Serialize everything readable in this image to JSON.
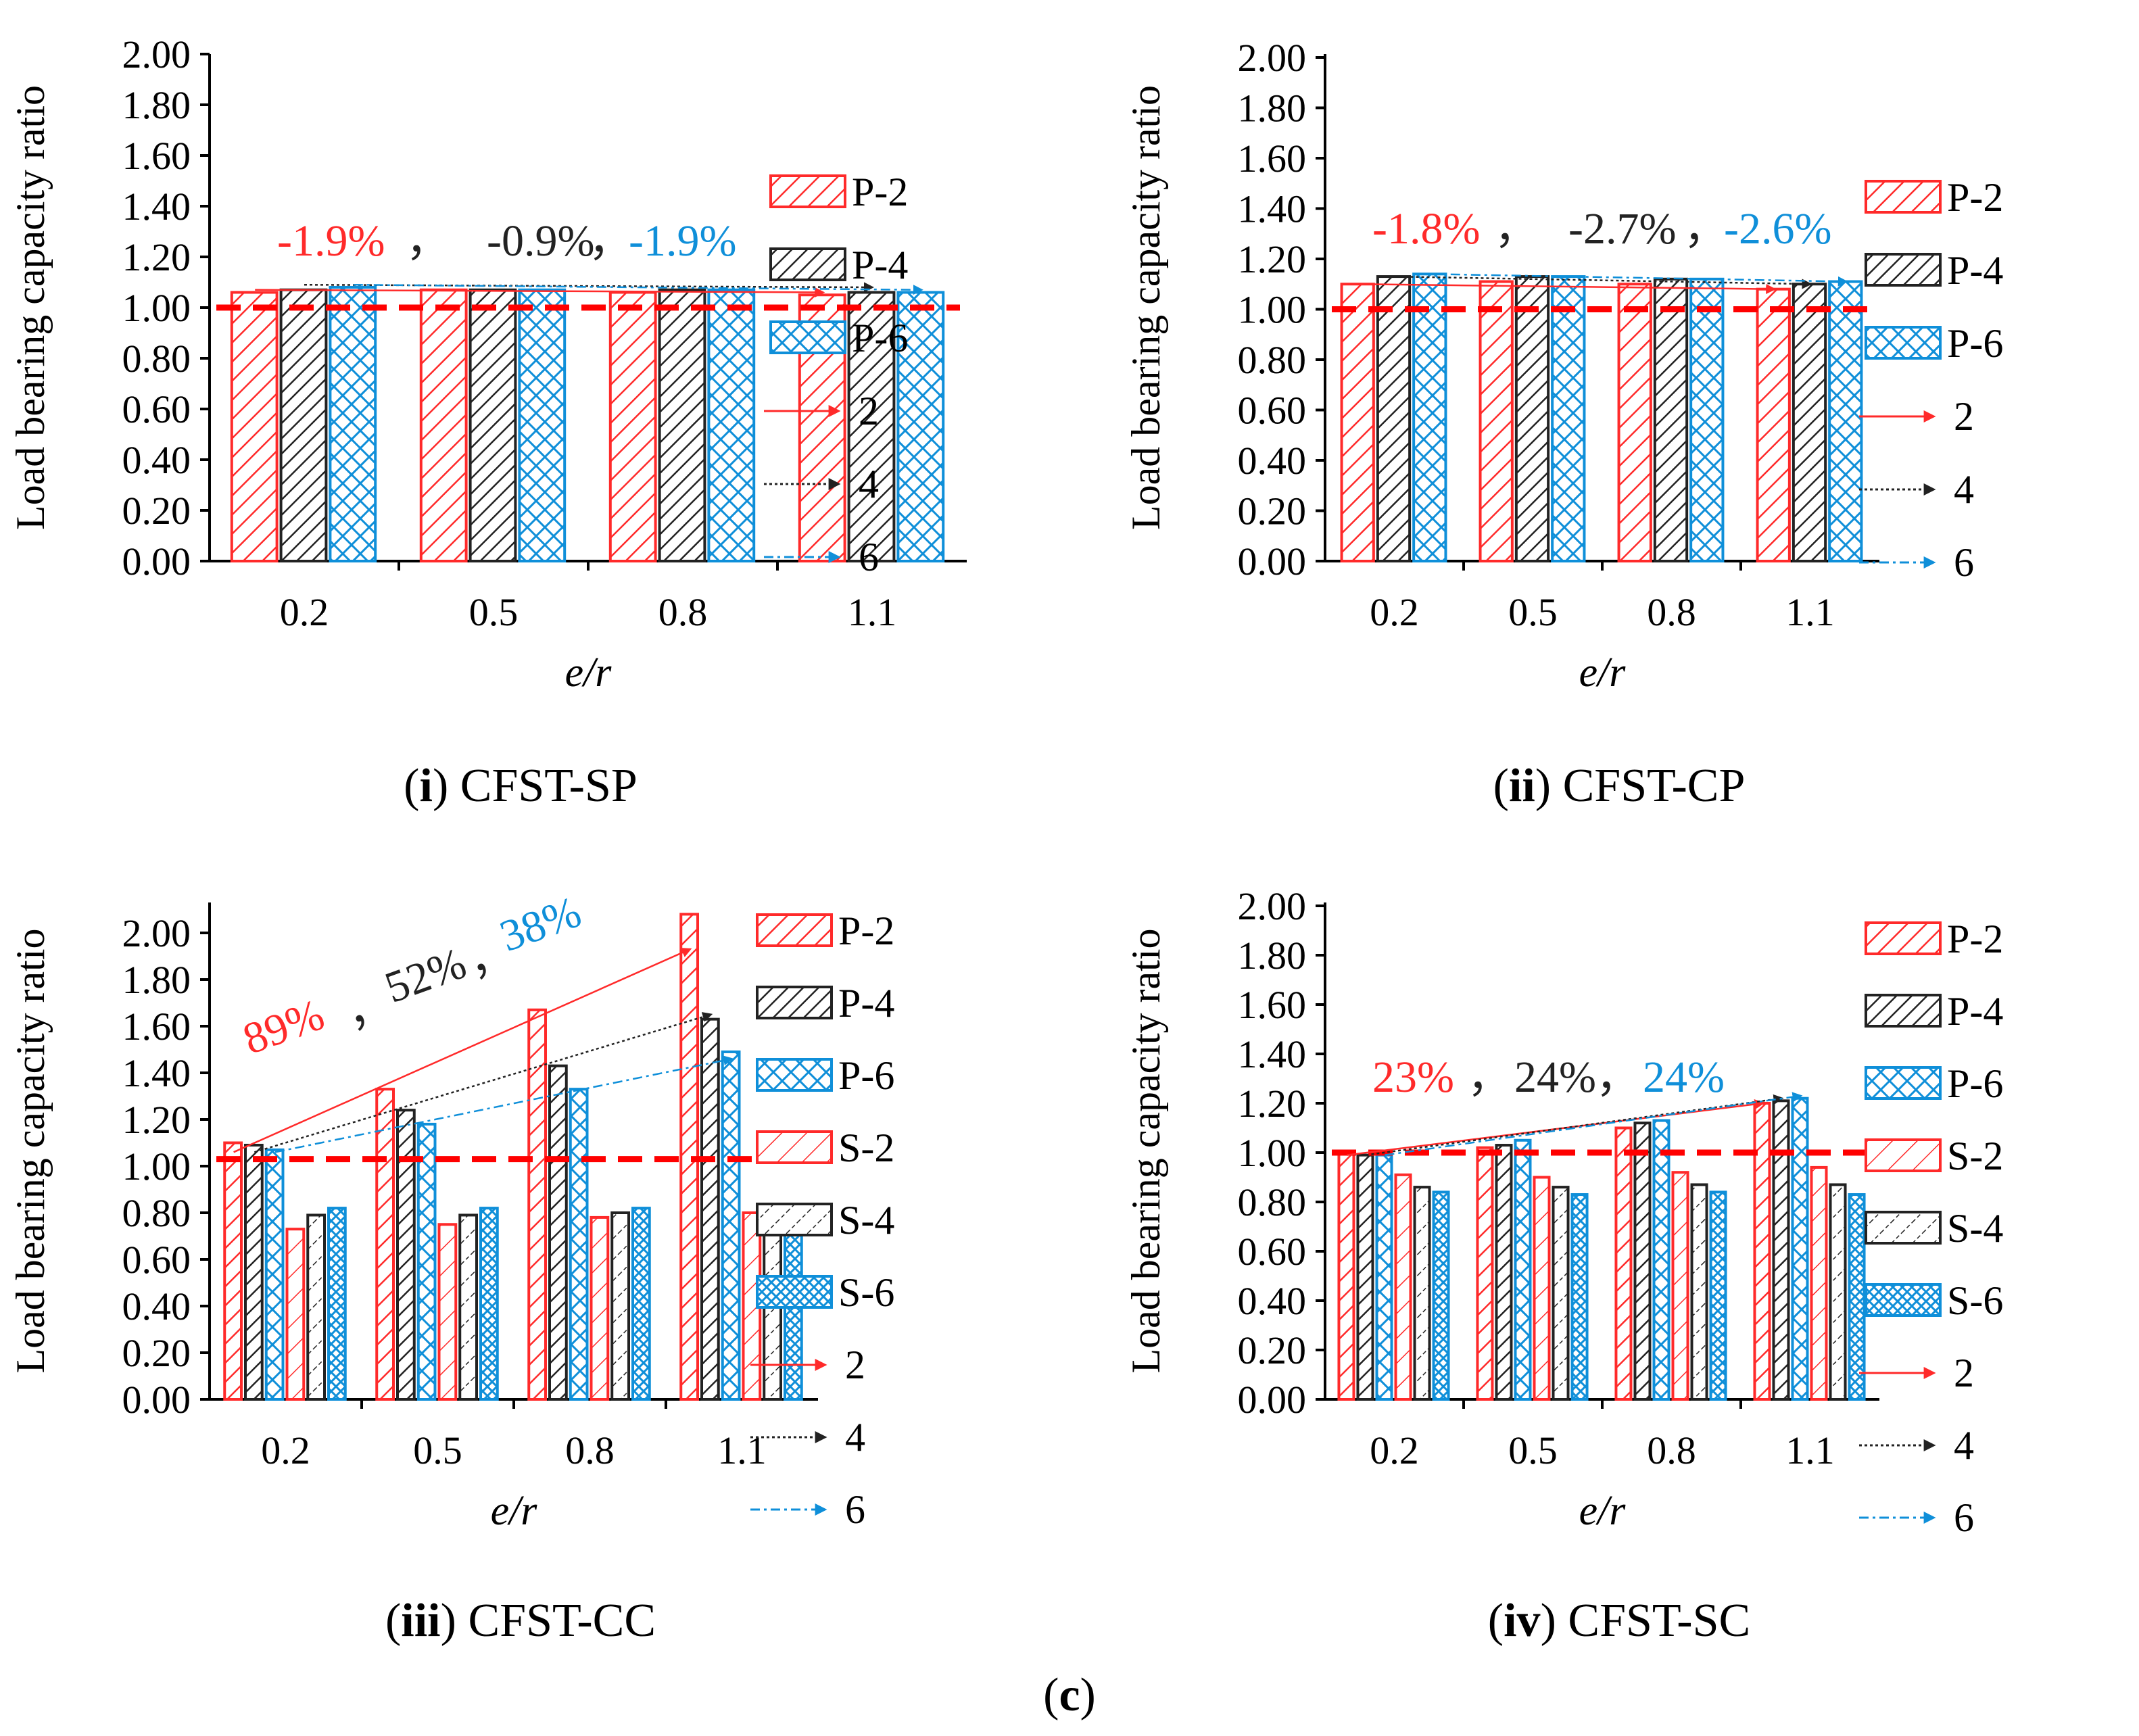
{
  "figure_label": "c",
  "colors": {
    "red": "#ff2a2a",
    "black": "#222222",
    "blue": "#0f8fd9",
    "refline": "#ff0000"
  },
  "chart_data": [
    {
      "id": "i",
      "caption_id": "i",
      "caption_text": "CFST-SP",
      "type": "bar",
      "ylabel": "Load bearing capacity ratio",
      "xlabel": "e/r",
      "ylim": [
        0,
        2
      ],
      "yticks": [
        "0.00",
        "0.20",
        "0.40",
        "0.60",
        "0.80",
        "1.00",
        "1.20",
        "1.40",
        "1.60",
        "1.80",
        "2.00"
      ],
      "categories": [
        "0.2",
        "0.5",
        "0.8",
        "1.1"
      ],
      "reference_line": 1.0,
      "series": [
        {
          "name": "P-2",
          "color": "red",
          "pattern": "hatch",
          "values": [
            1.06,
            1.07,
            1.06,
            1.05
          ]
        },
        {
          "name": "P-4",
          "color": "black",
          "pattern": "hatch",
          "values": [
            1.07,
            1.07,
            1.07,
            1.06
          ]
        },
        {
          "name": "P-6",
          "color": "blue",
          "pattern": "cross",
          "values": [
            1.08,
            1.07,
            1.07,
            1.06
          ]
        }
      ],
      "trend_lines": [
        {
          "name": "2",
          "color": "red",
          "from": 1.07,
          "to": 1.06
        },
        {
          "name": "4",
          "color": "black",
          "from": 1.09,
          "to": 1.08
        },
        {
          "name": "6",
          "color": "blue",
          "from": 1.09,
          "to": 1.07
        }
      ],
      "annotations": [
        {
          "text": "-1.9%",
          "color": "red"
        },
        {
          "text": "，",
          "color": "black"
        },
        {
          "text": "-0.9%",
          "color": "black"
        },
        {
          "text": "，",
          "color": "black"
        },
        {
          "text": "-1.9%",
          "color": "blue"
        }
      ]
    },
    {
      "id": "ii",
      "caption_id": "ii",
      "caption_text": "CFST-CP",
      "type": "bar",
      "ylabel": "Load bearing capacity ratio",
      "xlabel": "e/r",
      "ylim": [
        0,
        2
      ],
      "yticks": [
        "0.00",
        "0.20",
        "0.40",
        "0.60",
        "0.80",
        "1.00",
        "1.20",
        "1.40",
        "1.60",
        "1.80",
        "2.00"
      ],
      "categories": [
        "0.2",
        "0.5",
        "0.8",
        "1.1"
      ],
      "reference_line": 1.0,
      "series": [
        {
          "name": "P-2",
          "color": "red",
          "pattern": "hatch",
          "values": [
            1.1,
            1.11,
            1.1,
            1.08
          ]
        },
        {
          "name": "P-4",
          "color": "black",
          "pattern": "hatch",
          "values": [
            1.13,
            1.13,
            1.12,
            1.1
          ]
        },
        {
          "name": "P-6",
          "color": "blue",
          "pattern": "cross",
          "values": [
            1.14,
            1.13,
            1.12,
            1.11
          ]
        }
      ],
      "trend_lines": [
        {
          "name": "2",
          "color": "red",
          "from": 1.1,
          "to": 1.08
        },
        {
          "name": "4",
          "color": "black",
          "from": 1.13,
          "to": 1.1
        },
        {
          "name": "6",
          "color": "blue",
          "from": 1.14,
          "to": 1.11
        }
      ],
      "annotations": [
        {
          "text": "-1.8%",
          "color": "red"
        },
        {
          "text": "，",
          "color": "black"
        },
        {
          "text": "-2.7%",
          "color": "black"
        },
        {
          "text": "，",
          "color": "black"
        },
        {
          "text": "-2.6%",
          "color": "blue"
        }
      ]
    },
    {
      "id": "iii",
      "caption_id": "iii",
      "caption_text": "CFST-CC",
      "type": "bar",
      "ylabel": "Load bearing capacity ratio",
      "xlabel": "e/r",
      "ylim": [
        0,
        2.15
      ],
      "yticks": [
        "0.00",
        "0.20",
        "0.40",
        "0.60",
        "0.80",
        "1.00",
        "1.20",
        "1.40",
        "1.60",
        "1.80",
        "2.00"
      ],
      "categories": [
        "0.2",
        "0.5",
        "0.8",
        "1.1"
      ],
      "reference_line": 1.03,
      "series": [
        {
          "name": "P-2",
          "color": "red",
          "pattern": "hatch",
          "values": [
            1.1,
            1.33,
            1.67,
            2.08
          ]
        },
        {
          "name": "P-4",
          "color": "black",
          "pattern": "hatch",
          "values": [
            1.09,
            1.24,
            1.43,
            1.63
          ]
        },
        {
          "name": "P-6",
          "color": "blue",
          "pattern": "cross",
          "values": [
            1.07,
            1.18,
            1.33,
            1.49
          ]
        },
        {
          "name": "S-2",
          "color": "red",
          "pattern": "hatch-light",
          "values": [
            0.73,
            0.75,
            0.78,
            0.8
          ]
        },
        {
          "name": "S-4",
          "color": "black",
          "pattern": "hatch-light",
          "values": [
            0.79,
            0.79,
            0.8,
            0.8
          ]
        },
        {
          "name": "S-6",
          "color": "blue",
          "pattern": "dense",
          "values": [
            0.82,
            0.82,
            0.82,
            0.82
          ]
        }
      ],
      "trend_lines": [
        {
          "name": "2",
          "color": "red",
          "from": 1.06,
          "to": 1.93
        },
        {
          "name": "4",
          "color": "black",
          "from": 1.06,
          "to": 1.65
        },
        {
          "name": "6",
          "color": "blue",
          "from": 1.06,
          "to": 1.46
        }
      ],
      "annotations": [
        {
          "text": "89%",
          "color": "red"
        },
        {
          "text": "，",
          "color": "black"
        },
        {
          "text": "52%",
          "color": "black"
        },
        {
          "text": "，",
          "color": "black"
        },
        {
          "text": "38%",
          "color": "blue"
        }
      ]
    },
    {
      "id": "iv",
      "caption_id": "iv",
      "caption_text": "CFST-SC",
      "type": "bar",
      "ylabel": "Load bearing capacity ratio",
      "xlabel": "e/r",
      "ylim": [
        0,
        2
      ],
      "yticks": [
        "0.00",
        "0.20",
        "0.40",
        "0.60",
        "0.80",
        "1.00",
        "1.20",
        "1.40",
        "1.60",
        "1.80",
        "2.00"
      ],
      "categories": [
        "0.2",
        "0.5",
        "0.8",
        "1.1"
      ],
      "reference_line": 1.0,
      "series": [
        {
          "name": "P-2",
          "color": "red",
          "pattern": "hatch",
          "values": [
            1.0,
            1.02,
            1.1,
            1.2
          ]
        },
        {
          "name": "P-4",
          "color": "black",
          "pattern": "hatch",
          "values": [
            0.99,
            1.03,
            1.12,
            1.21
          ]
        },
        {
          "name": "P-6",
          "color": "blue",
          "pattern": "cross",
          "values": [
            0.99,
            1.05,
            1.13,
            1.22
          ]
        },
        {
          "name": "S-2",
          "color": "red",
          "pattern": "hatch-light",
          "values": [
            0.91,
            0.9,
            0.92,
            0.94
          ]
        },
        {
          "name": "S-4",
          "color": "black",
          "pattern": "hatch-light",
          "values": [
            0.86,
            0.86,
            0.87,
            0.87
          ]
        },
        {
          "name": "S-6",
          "color": "blue",
          "pattern": "dense",
          "values": [
            0.84,
            0.83,
            0.84,
            0.83
          ]
        }
      ],
      "trend_lines": [
        {
          "name": "2",
          "color": "red",
          "from": 0.99,
          "to": 1.2
        },
        {
          "name": "4",
          "color": "black",
          "from": 0.99,
          "to": 1.22
        },
        {
          "name": "6",
          "color": "blue",
          "from": 0.99,
          "to": 1.23
        }
      ],
      "annotations": [
        {
          "text": "23%",
          "color": "red"
        },
        {
          "text": "，",
          "color": "black"
        },
        {
          "text": "24%",
          "color": "black"
        },
        {
          "text": "，",
          "color": "black"
        },
        {
          "text": "24%",
          "color": "blue"
        }
      ]
    }
  ]
}
